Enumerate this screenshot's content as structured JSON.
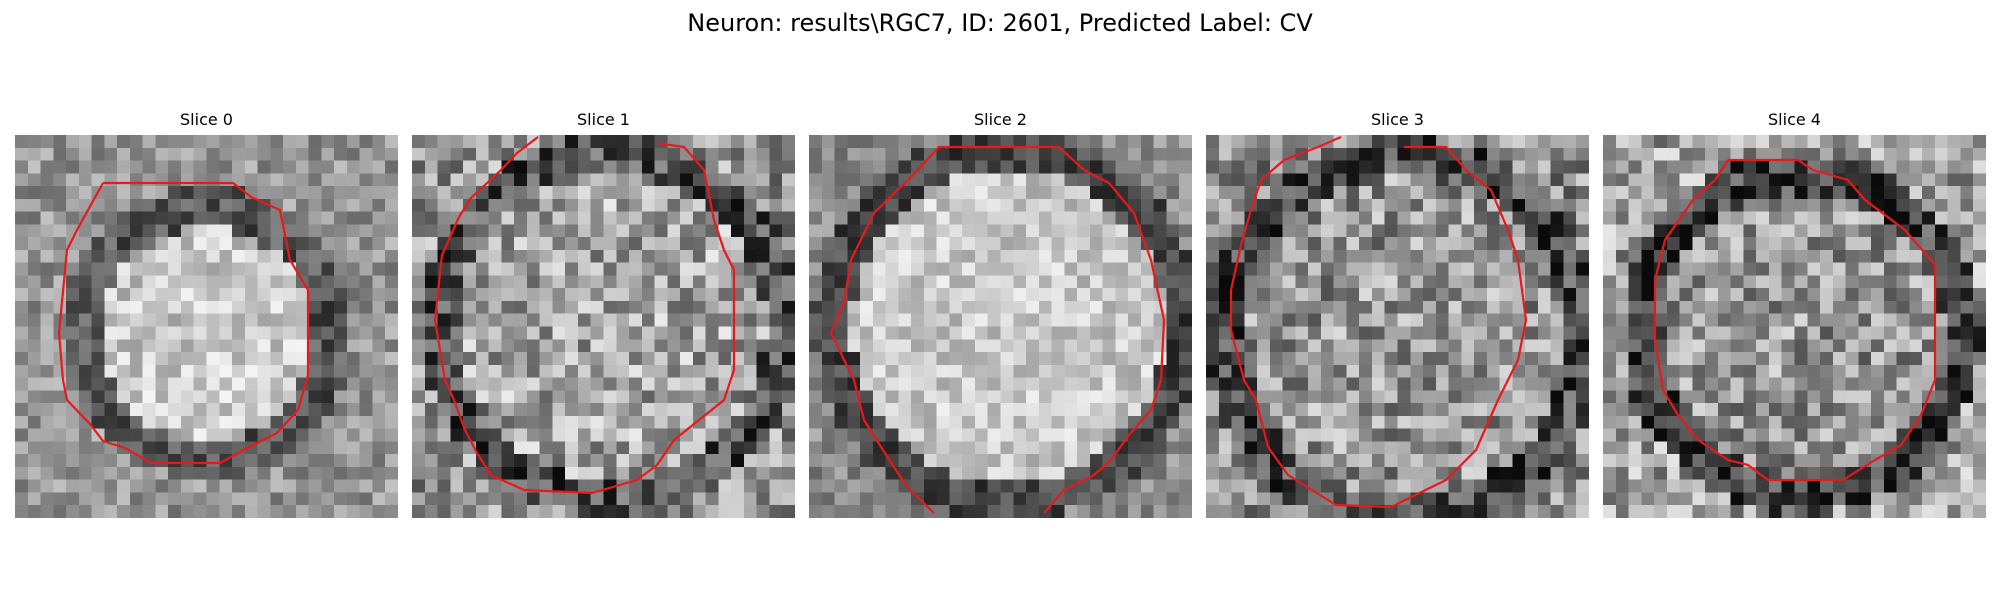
{
  "figure": {
    "title": "Neuron: results\\RGC7, ID: 2601, Predicted Label: CV",
    "contour_color": "#e8191b",
    "colormap": "gray"
  },
  "panels": [
    {
      "title": "Slice 0"
    },
    {
      "title": "Slice 1"
    },
    {
      "title": "Slice 2"
    },
    {
      "title": "Slice 3"
    },
    {
      "title": "Slice 4"
    }
  ]
}
